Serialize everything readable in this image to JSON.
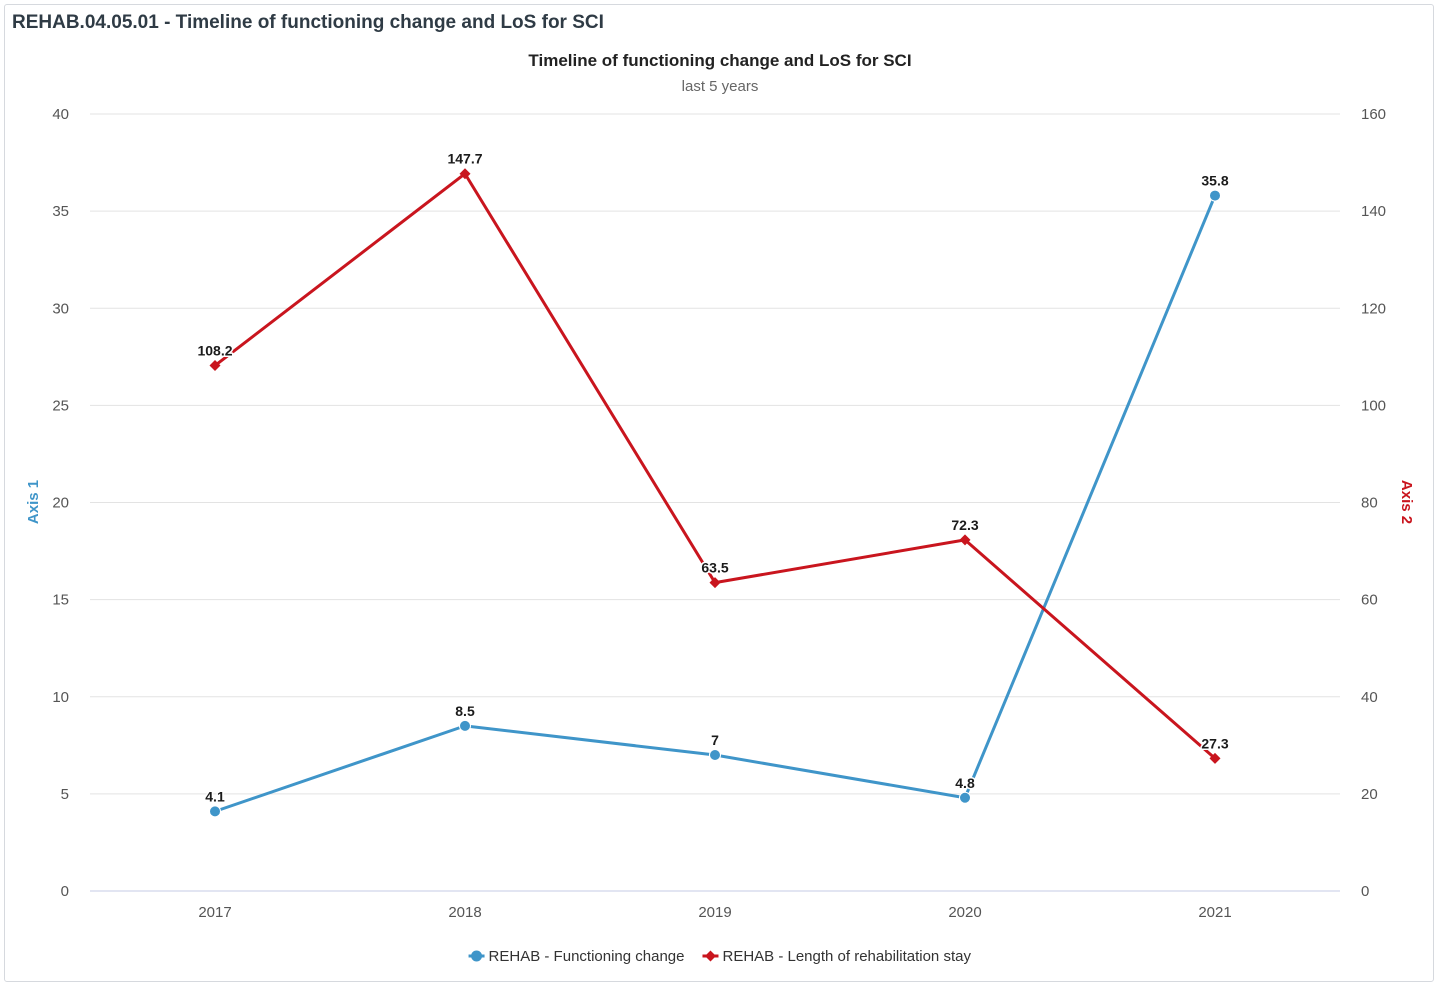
{
  "panel": {
    "title": "REHAB.04.05.01 - Timeline of functioning change and LoS for SCI"
  },
  "chart_data": {
    "type": "line",
    "title": "Timeline of functioning change and LoS for SCI",
    "subtitle": "last 5 years",
    "categories": [
      "2017",
      "2018",
      "2019",
      "2020",
      "2021"
    ],
    "y_axes": [
      {
        "title": "Axis 1",
        "side": "left",
        "min": 0,
        "max": 40,
        "tick_interval": 5,
        "color": "#3f95c9",
        "ticks": [
          "0",
          "5",
          "10",
          "15",
          "20",
          "25",
          "30",
          "35",
          "40"
        ]
      },
      {
        "title": "Axis 2",
        "side": "right",
        "min": 0,
        "max": 160,
        "tick_interval": 20,
        "color": "#c9151e",
        "ticks": [
          "0",
          "20",
          "40",
          "60",
          "80",
          "100",
          "120",
          "140",
          "160"
        ]
      }
    ],
    "series": [
      {
        "name": "REHAB - Functioning change",
        "axis": 0,
        "color": "#3f95c9",
        "marker": "circle",
        "values": [
          4.1,
          8.5,
          7,
          4.8,
          35.8
        ],
        "labels": [
          "4.1",
          "8.5",
          "7",
          "4.8",
          "35.8"
        ]
      },
      {
        "name": "REHAB - Length of rehabilitation stay",
        "axis": 1,
        "color": "#c9151e",
        "marker": "diamond",
        "values": [
          108.2,
          147.7,
          63.5,
          72.3,
          27.3
        ],
        "labels": [
          "108.2",
          "147.7",
          "63.5",
          "72.3",
          "27.3"
        ]
      }
    ],
    "grid": true,
    "legend": "bottom-center"
  }
}
